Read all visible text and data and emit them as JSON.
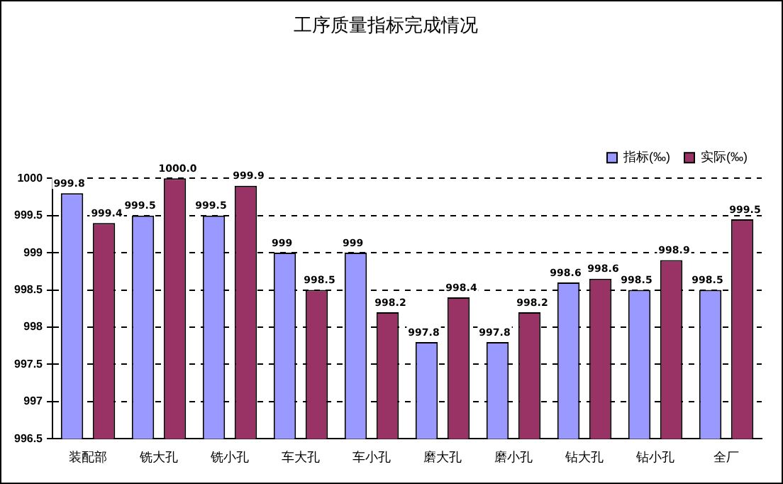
{
  "chart_data": {
    "type": "bar",
    "title": "工序质量指标完成情况",
    "categories": [
      "装配部",
      "铣大孔",
      "铣小孔",
      "车大孔",
      "车小孔",
      "磨大孔",
      "磨小孔",
      "钻大孔",
      "钻小孔",
      "全厂"
    ],
    "series": [
      {
        "name": "指标(‰)",
        "color": "#9999ff",
        "values": [
          999.8,
          999.5,
          999.5,
          999,
          999,
          997.8,
          997.8,
          998.6,
          998.5,
          998.5
        ],
        "value_labels": [
          "999.8",
          "999.5",
          "999.5",
          "999",
          "999",
          "997.8",
          "997.8",
          "998.6",
          "998.5",
          "998.5"
        ]
      },
      {
        "name": "实际(‰)",
        "color": "#993366",
        "values": [
          999.4,
          1000.0,
          999.9,
          998.5,
          998.2,
          998.4,
          998.2,
          998.65,
          998.9,
          999.45
        ],
        "value_labels": [
          "999.4",
          "1000.0",
          "999.9",
          "998.5",
          "998.2",
          "998.4",
          "998.2",
          "998.6",
          "998.9",
          "999.5"
        ]
      }
    ],
    "ylim": [
      996.5,
      1000
    ],
    "yticks": [
      996.5,
      997,
      997.5,
      998,
      998.5,
      999,
      999.5,
      1000
    ],
    "grid": "y",
    "legend": "top right"
  }
}
